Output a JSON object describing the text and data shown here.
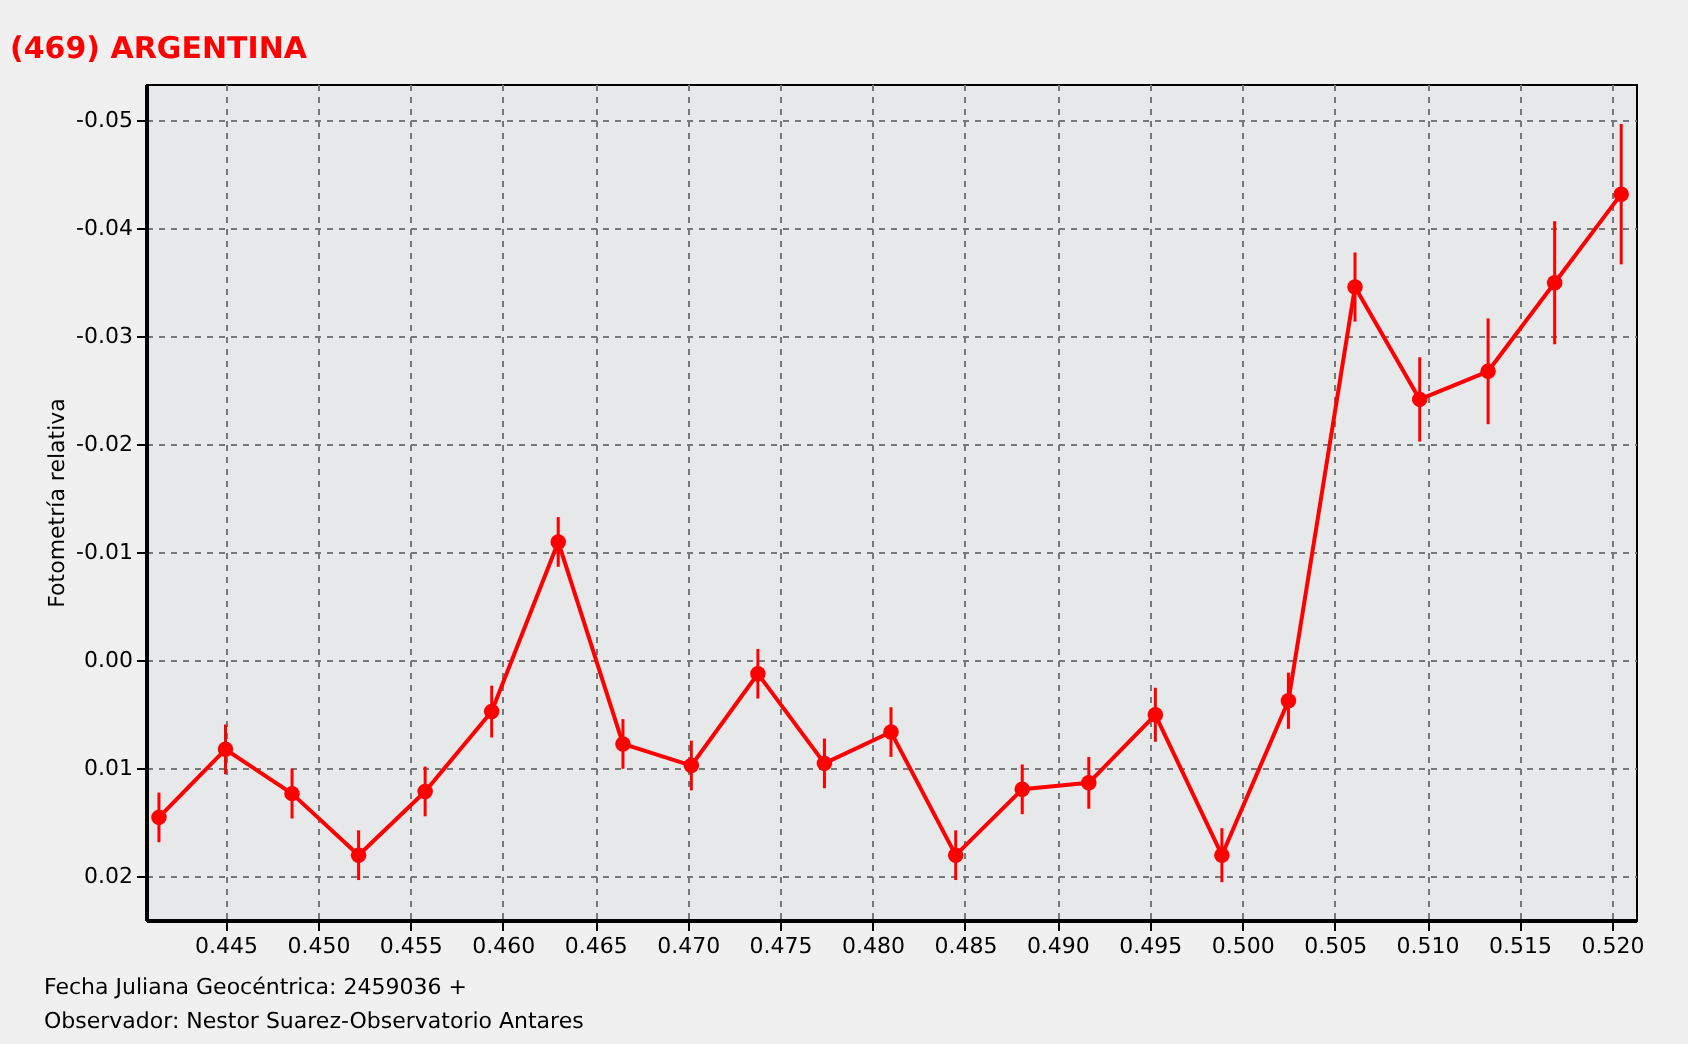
{
  "chart_data": {
    "type": "line",
    "title": "(469) ARGENTINA",
    "ylabel": "Fotometría relativa",
    "annotations": [
      "Fecha Juliana Geocéntrica: 2459036 +",
      "Observador: Nestor Suarez-Observatorio Antares"
    ],
    "x": [
      0.4414,
      0.445,
      0.4486,
      0.4522,
      0.4558,
      0.4594,
      0.463,
      0.4665,
      0.4702,
      0.4738,
      0.4774,
      0.481,
      0.4845,
      0.4881,
      0.4917,
      0.4953,
      0.4989,
      0.5025,
      0.5061,
      0.5096,
      0.5133,
      0.5169,
      0.5205
    ],
    "series": [
      {
        "color": "#ff0000",
        "values": [
          0.0146,
          0.0083,
          0.0124,
          0.0181,
          0.0122,
          0.0048,
          -0.0109,
          0.0078,
          0.0098,
          0.0013,
          0.0096,
          0.0067,
          0.0181,
          0.012,
          0.0114,
          0.0051,
          0.0181,
          0.0038,
          -0.0345,
          -0.0241,
          -0.0267,
          -0.0349,
          -0.0431
        ],
        "errors": [
          0.0023,
          0.0023,
          0.0023,
          0.0023,
          0.0023,
          0.0024,
          0.0023,
          0.0023,
          0.0023,
          0.0023,
          0.0023,
          0.0023,
          0.0023,
          0.0023,
          0.0024,
          0.0025,
          0.0025,
          0.0026,
          0.0032,
          0.0039,
          0.0049,
          0.0057,
          0.0065
        ]
      }
    ],
    "xlim": [
      0.4407,
      0.5213
    ],
    "ylim": [
      0.0241,
      -0.0533
    ],
    "xticks": [
      0.445,
      {
        "value": 0.45,
        "label": "0.450"
      },
      0.455,
      {
        "value": 0.46,
        "label": "0.460"
      },
      0.465,
      {
        "value": 0.47,
        "label": "0.470"
      },
      0.475,
      {
        "value": 0.48,
        "label": "0.480"
      },
      0.485,
      {
        "value": 0.49,
        "label": "0.490"
      },
      0.495,
      {
        "value": 0.5,
        "label": "0.500"
      },
      0.505,
      {
        "value": 0.51,
        "label": "0.510"
      },
      0.515,
      {
        "value": 0.52,
        "label": "0.520"
      }
    ],
    "yticks": [
      -0.05,
      {
        "value": -0.04,
        "label": "-0.04"
      },
      {
        "value": -0.03,
        "label": "-0.03"
      },
      {
        "value": -0.02,
        "label": "-0.02"
      },
      -0.01,
      {
        "value": 0,
        "label": "0.00"
      },
      0.01,
      0.02
    ],
    "grid": true,
    "marker": "circle",
    "line_style": "solid"
  }
}
